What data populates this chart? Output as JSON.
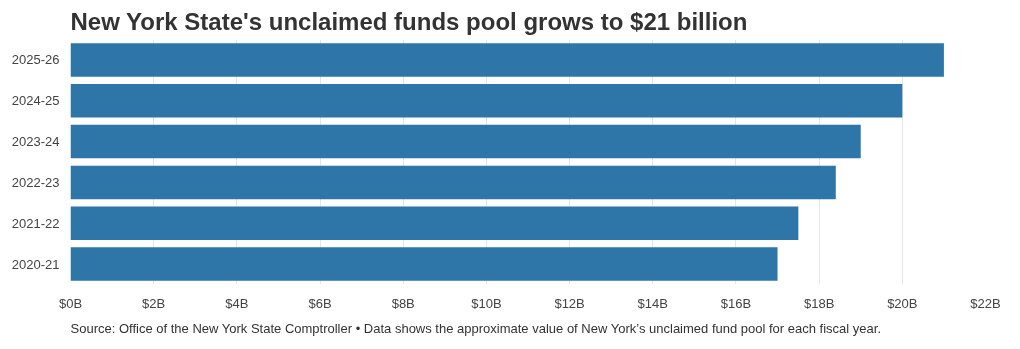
{
  "chart_data": {
    "type": "bar",
    "orientation": "horizontal",
    "title": "New York State's unclaimed funds pool grows to $21 billion",
    "categories": [
      "2025-26",
      "2024-25",
      "2023-24",
      "2022-23",
      "2021-22",
      "2020-21"
    ],
    "values": [
      21,
      20,
      19,
      18.4,
      17.5,
      17
    ],
    "color": "#2e75a8",
    "xlim": [
      0,
      22
    ],
    "xticks": [
      {
        "value": 0,
        "label": "$0B"
      },
      {
        "value": 2,
        "label": "$2B"
      },
      {
        "value": 4,
        "label": "$4B"
      },
      {
        "value": 6,
        "label": "$6B"
      },
      {
        "value": 8,
        "label": "$8B"
      },
      {
        "value": 10,
        "label": "$10B"
      },
      {
        "value": 12,
        "label": "$12B"
      },
      {
        "value": 14,
        "label": "$14B"
      },
      {
        "value": 16,
        "label": "$16B"
      },
      {
        "value": 18,
        "label": "$18B"
      },
      {
        "value": 20,
        "label": "$20B"
      },
      {
        "value": 22,
        "label": "$22B"
      }
    ],
    "grid": "x",
    "annotations": [
      "Source: Office of the New York State Comptroller • Data shows the approximate value of New York’s unclaimed fund pool for each fiscal year."
    ]
  }
}
